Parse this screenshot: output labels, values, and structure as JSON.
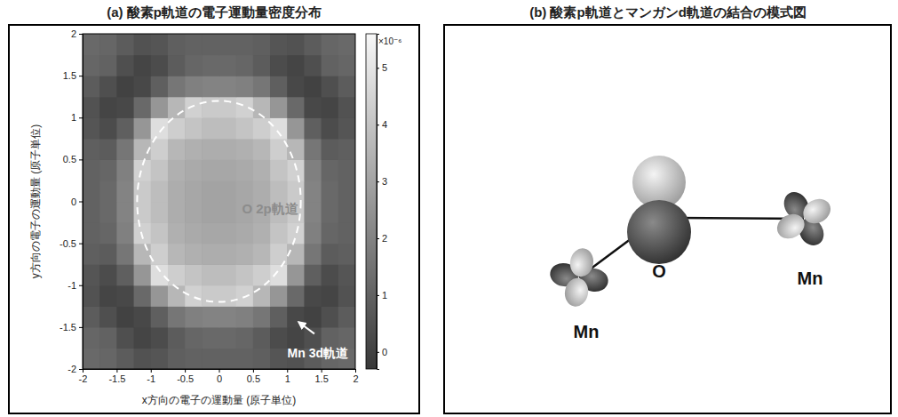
{
  "chart_data": {
    "type": "heatmap",
    "title": "(a) 酸素p軌道の電子運動量密度分布",
    "x_label": "x方向の電子の運動量 (原子単位)",
    "y_label": "y方向の電子の運動量 (原子単位)",
    "x": [
      -1.875,
      -1.625,
      -1.375,
      -1.125,
      -0.875,
      -0.625,
      -0.375,
      -0.125,
      0.125,
      0.375,
      0.625,
      0.875,
      1.125,
      1.375,
      1.625,
      1.875
    ],
    "y": [
      -1.875,
      -1.625,
      -1.375,
      -1.125,
      -0.875,
      -0.625,
      -0.375,
      -0.125,
      0.125,
      0.375,
      0.625,
      0.875,
      1.125,
      1.375,
      1.625,
      1.875
    ],
    "z": [
      [
        1.2,
        1.1,
        0.8,
        0.5,
        0.6,
        0.9,
        1.0,
        1.0,
        1.0,
        1.0,
        0.9,
        0.6,
        0.5,
        0.8,
        1.1,
        1.2
      ],
      [
        1.1,
        1.0,
        0.4,
        0.1,
        0.3,
        0.8,
        1.1,
        1.2,
        1.2,
        1.1,
        0.8,
        0.3,
        0.1,
        0.4,
        1.0,
        1.1
      ],
      [
        0.8,
        0.4,
        0.0,
        0.2,
        0.9,
        1.6,
        1.9,
        2.0,
        2.0,
        1.9,
        1.6,
        0.9,
        0.2,
        0.0,
        0.4,
        0.8
      ],
      [
        0.5,
        0.1,
        0.2,
        1.2,
        2.6,
        3.6,
        4.4,
        4.2,
        4.2,
        4.4,
        3.6,
        2.6,
        1.2,
        0.2,
        0.1,
        0.5
      ],
      [
        0.6,
        0.3,
        0.9,
        2.6,
        4.8,
        4.3,
        4.0,
        3.8,
        3.8,
        4.0,
        4.3,
        4.8,
        2.6,
        0.9,
        0.3,
        0.6
      ],
      [
        0.9,
        0.8,
        1.6,
        3.6,
        4.3,
        3.6,
        3.4,
        3.3,
        3.3,
        3.4,
        3.6,
        4.3,
        3.6,
        1.6,
        0.8,
        0.9
      ],
      [
        1.0,
        1.1,
        1.9,
        4.4,
        4.0,
        3.4,
        3.2,
        3.1,
        3.1,
        3.2,
        3.4,
        4.0,
        4.4,
        1.9,
        1.1,
        1.0
      ],
      [
        1.0,
        1.2,
        2.0,
        4.2,
        3.8,
        3.3,
        3.1,
        3.0,
        3.0,
        3.1,
        3.3,
        3.8,
        4.2,
        2.0,
        1.2,
        1.0
      ],
      [
        1.0,
        1.2,
        2.0,
        4.2,
        3.8,
        3.3,
        3.1,
        3.0,
        3.0,
        3.1,
        3.3,
        3.8,
        4.2,
        2.0,
        1.2,
        1.0
      ],
      [
        1.0,
        1.1,
        1.9,
        4.4,
        4.0,
        3.4,
        3.2,
        3.1,
        3.1,
        3.2,
        3.4,
        4.0,
        4.4,
        1.9,
        1.1,
        1.0
      ],
      [
        0.9,
        0.8,
        1.6,
        3.6,
        4.3,
        3.6,
        3.4,
        3.3,
        3.3,
        3.4,
        3.6,
        4.3,
        3.6,
        1.6,
        0.8,
        0.9
      ],
      [
        0.6,
        0.3,
        0.9,
        2.6,
        4.8,
        4.3,
        4.0,
        3.8,
        3.8,
        4.0,
        4.3,
        4.8,
        2.6,
        0.9,
        0.3,
        0.6
      ],
      [
        0.5,
        0.1,
        0.2,
        1.2,
        2.6,
        3.6,
        4.4,
        4.2,
        4.2,
        4.4,
        3.6,
        2.6,
        1.2,
        0.2,
        0.1,
        0.5
      ],
      [
        0.8,
        0.4,
        0.0,
        0.2,
        0.9,
        1.6,
        1.9,
        2.0,
        2.0,
        1.9,
        1.6,
        0.9,
        0.2,
        0.0,
        0.4,
        0.8
      ],
      [
        1.1,
        1.0,
        0.4,
        0.1,
        0.3,
        0.8,
        1.1,
        1.2,
        1.2,
        1.1,
        0.8,
        0.3,
        0.1,
        0.4,
        1.0,
        1.1
      ],
      [
        1.2,
        1.1,
        0.8,
        0.5,
        0.6,
        0.9,
        1.0,
        1.0,
        1.0,
        1.0,
        0.9,
        0.6,
        0.5,
        0.8,
        1.1,
        1.2
      ]
    ],
    "xlim": [
      -2,
      2
    ],
    "ylim": [
      -2,
      2
    ],
    "xticks": [
      -2,
      -1.5,
      -1,
      -0.5,
      0,
      0.5,
      1,
      1.5,
      2
    ],
    "yticks": [
      -2,
      -1.5,
      -1,
      -0.5,
      0,
      0.5,
      1,
      1.5,
      2
    ],
    "colorbar": {
      "range": [
        -0.3,
        5.6
      ],
      "ticks": [
        0,
        1,
        2,
        3,
        4,
        5
      ],
      "label": "×10⁻⁶",
      "colors": [
        "#383838",
        "#f8f8f8"
      ]
    },
    "circle": {
      "r": 1.2,
      "line_style": "dashed",
      "color": "#ffffff"
    },
    "annotations": [
      {
        "text": "O 2p軌道",
        "x": 0.75,
        "y": -0.1,
        "color": "#8c8c8c"
      },
      {
        "text": "Mn 3d軌道",
        "x": 1.45,
        "y": -1.82,
        "color": "#ffffff",
        "arrow_from": [
          1.4,
          -1.58
        ],
        "arrow_to": [
          1.17,
          -1.44
        ]
      }
    ]
  },
  "diagram": {
    "title": "(b) 酸素p軌道とマンガンd軌道の結合の模式図",
    "atoms": [
      {
        "label": "Mn"
      },
      {
        "label": "O"
      },
      {
        "label": "Mn"
      }
    ]
  }
}
